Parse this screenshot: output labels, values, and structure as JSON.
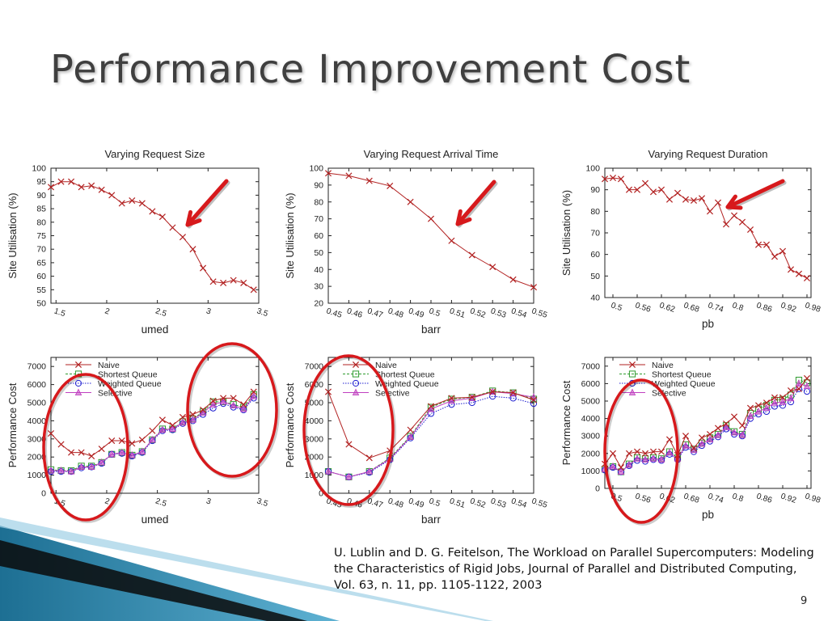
{
  "slide": {
    "title": "Performance Improvement Cost",
    "citation": "U. Lublin and D. G. Feitelson, The Workload on Parallel Supercomputers: Modeling the Characteristics of Rigid Jobs, Journal of Parallel and Distributed Computing, Vol. 63, n. 11, pp. 1105-1122, 2003",
    "page_number": "9"
  },
  "colors": {
    "naive": "#b22222",
    "shortest_queue": "#2e9b2e",
    "weighted_queue": "#1f1fd0",
    "selective": "#c040c0",
    "annotation_red": "#d7191c"
  },
  "chart_data": [
    {
      "type": "line",
      "title": "Varying Request Size",
      "xlabel": "umed",
      "ylabel": "Site Utilisation (%)",
      "xlim": [
        1.45,
        3.5
      ],
      "ylim": [
        50,
        100
      ],
      "xticks": [
        1.5,
        2,
        2.5,
        3,
        3.5
      ],
      "xtick_labels": [
        "1.5",
        "2",
        "2.5",
        "3",
        "3.5"
      ],
      "yticks": [
        50,
        55,
        60,
        65,
        70,
        75,
        80,
        85,
        90,
        95,
        100
      ],
      "grid": false,
      "annotation": "red arrow pointing at curve near umed 2.75",
      "series": [
        {
          "x": [
            1.45,
            1.55,
            1.65,
            1.75,
            1.85,
            1.95,
            2.05,
            2.15,
            2.25,
            2.35,
            2.45,
            2.55,
            2.65,
            2.75,
            2.85,
            2.95,
            3.05,
            3.15,
            3.25,
            3.35,
            3.45
          ],
          "y": [
            93,
            95,
            95,
            93,
            93.5,
            92,
            90,
            87,
            88,
            87,
            84,
            82,
            78,
            74.5,
            70,
            63,
            58,
            57.5,
            58.5,
            57.5,
            55
          ]
        }
      ]
    },
    {
      "type": "line",
      "title": "Varying Request Arrival Time",
      "xlabel": "barr",
      "ylabel": "Site Utilisation (%)",
      "xlim": [
        0.45,
        0.55
      ],
      "ylim": [
        20,
        100
      ],
      "xticks": [
        0.45,
        0.46,
        0.47,
        0.48,
        0.49,
        0.5,
        0.51,
        0.52,
        0.53,
        0.54,
        0.55
      ],
      "xtick_labels": [
        "0.45",
        "0.46",
        "0.47",
        "0.48",
        "0.49",
        "0.5",
        "0.51",
        "0.52",
        "0.53",
        "0.54",
        "0.55"
      ],
      "yticks": [
        20,
        30,
        40,
        50,
        60,
        70,
        80,
        90,
        100
      ],
      "grid": false,
      "annotation": "red arrow pointing at curve near barr 0.5",
      "series": [
        {
          "x": [
            0.45,
            0.46,
            0.47,
            0.48,
            0.49,
            0.5,
            0.51,
            0.52,
            0.53,
            0.54,
            0.55
          ],
          "y": [
            97,
            95.5,
            92.5,
            89.5,
            80,
            70,
            57,
            48.5,
            41.5,
            34,
            29.5
          ]
        }
      ]
    },
    {
      "type": "line",
      "title": "Varying Request Duration",
      "xlabel": "pb",
      "ylabel": "Site Utilisation (%)",
      "xlim": [
        0.48,
        0.99
      ],
      "ylim": [
        40,
        100
      ],
      "xticks": [
        0.5,
        0.56,
        0.62,
        0.68,
        0.74,
        0.8,
        0.86,
        0.92,
        0.98
      ],
      "xtick_labels": [
        "0.5",
        "0.56",
        "0.62",
        "0.68",
        "0.74",
        "0.8",
        "0.86",
        "0.92",
        "0.98"
      ],
      "yticks": [
        40,
        50,
        60,
        70,
        80,
        90,
        100
      ],
      "grid": false,
      "annotation": "red arrow pointing at curve near pb 0.79",
      "series": [
        {
          "x": [
            0.48,
            0.5,
            0.52,
            0.54,
            0.56,
            0.58,
            0.6,
            0.62,
            0.64,
            0.66,
            0.68,
            0.7,
            0.72,
            0.74,
            0.76,
            0.78,
            0.8,
            0.82,
            0.84,
            0.86,
            0.88,
            0.9,
            0.92,
            0.94,
            0.96,
            0.98
          ],
          "y": [
            95,
            95.5,
            95,
            90,
            90,
            93,
            89,
            90,
            85.5,
            88.5,
            85.5,
            85,
            86,
            80,
            84,
            74,
            78,
            75,
            71.5,
            64.5,
            64.5,
            59,
            61.5,
            53,
            51,
            49
          ]
        }
      ]
    },
    {
      "type": "line",
      "title": "",
      "xlabel": "umed",
      "ylabel": "Performance Cost",
      "xlim": [
        1.45,
        3.5
      ],
      "ylim": [
        0,
        7500
      ],
      "xticks": [
        1.5,
        2,
        2.5,
        3,
        3.5
      ],
      "xtick_labels": [
        "1.5",
        "2",
        "2.5",
        "3",
        "3.5"
      ],
      "yticks": [
        0,
        1000,
        2000,
        3000,
        4000,
        5000,
        6000,
        7000
      ],
      "grid": false,
      "legend": "top-left",
      "annotation": "two red ellipses around umed 1.45-1.9 and umed 2.8-3.45",
      "x": [
        1.45,
        1.55,
        1.65,
        1.75,
        1.85,
        1.95,
        2.05,
        2.15,
        2.25,
        2.35,
        2.45,
        2.55,
        2.65,
        2.75,
        2.85,
        2.95,
        3.05,
        3.15,
        3.25,
        3.35,
        3.45
      ],
      "series": [
        {
          "name": "Naive",
          "y": [
            3300,
            2700,
            2250,
            2250,
            2050,
            2450,
            2900,
            2900,
            2750,
            2950,
            3450,
            4050,
            3750,
            4200,
            4350,
            4600,
            5100,
            5250,
            5250,
            4900,
            5600
          ]
        },
        {
          "name": "Shortest Queue",
          "y": [
            1300,
            1250,
            1250,
            1500,
            1500,
            1700,
            2150,
            2250,
            2100,
            2300,
            2950,
            3550,
            3550,
            3950,
            4100,
            4500,
            5050,
            5050,
            4900,
            4750,
            5450
          ]
        },
        {
          "name": "Weighted Queue",
          "y": [
            1200,
            1200,
            1200,
            1400,
            1450,
            1650,
            2150,
            2200,
            2050,
            2250,
            2900,
            3450,
            3500,
            3850,
            4000,
            4350,
            4700,
            4950,
            4750,
            4600,
            5250
          ]
        },
        {
          "name": "Selective",
          "y": [
            1250,
            1250,
            1200,
            1450,
            1450,
            1700,
            2150,
            2250,
            2100,
            2300,
            2950,
            3500,
            3550,
            3900,
            4050,
            4450,
            4900,
            5050,
            4850,
            4650,
            5350
          ]
        }
      ]
    },
    {
      "type": "line",
      "title": "",
      "xlabel": "barr",
      "ylabel": "Performance Cost",
      "xlim": [
        0.45,
        0.55
      ],
      "ylim": [
        0,
        7500
      ],
      "xticks": [
        0.45,
        0.46,
        0.47,
        0.48,
        0.49,
        0.5,
        0.51,
        0.52,
        0.53,
        0.54,
        0.55
      ],
      "xtick_labels": [
        "0.45",
        "0.46",
        "0.47",
        "0.48",
        "0.49",
        "0.5",
        "0.51",
        "0.52",
        "0.53",
        "0.54",
        "0.55"
      ],
      "yticks": [
        0,
        1000,
        2000,
        3000,
        4000,
        5000,
        6000,
        7000
      ],
      "grid": false,
      "legend": "top-left",
      "annotation": "red ellipse around barr 0.45-0.475",
      "x": [
        0.45,
        0.46,
        0.47,
        0.48,
        0.49,
        0.5,
        0.51,
        0.52,
        0.53,
        0.54,
        0.55
      ],
      "series": [
        {
          "name": "Naive",
          "y": [
            5600,
            2700,
            1950,
            2350,
            3500,
            4800,
            5250,
            5300,
            5600,
            5550,
            5150
          ]
        },
        {
          "name": "Shortest Queue",
          "y": [
            1200,
            900,
            1200,
            1950,
            3150,
            4750,
            5200,
            5300,
            5650,
            5550,
            5200
          ]
        },
        {
          "name": "Weighted Queue",
          "y": [
            1200,
            900,
            1150,
            1850,
            3050,
            4400,
            4900,
            5000,
            5350,
            5250,
            4950
          ]
        },
        {
          "name": "Selective",
          "y": [
            1200,
            900,
            1200,
            1900,
            3100,
            4650,
            5100,
            5250,
            5600,
            5500,
            5300
          ]
        }
      ]
    },
    {
      "type": "line",
      "title": "",
      "xlabel": "pb",
      "ylabel": "Performance Cost",
      "xlim": [
        0.48,
        0.99
      ],
      "ylim": [
        0,
        7500
      ],
      "xticks": [
        0.5,
        0.56,
        0.62,
        0.68,
        0.74,
        0.8,
        0.86,
        0.92,
        0.98
      ],
      "xtick_labels": [
        "0.5",
        "0.56",
        "0.62",
        "0.68",
        "0.74",
        "0.8",
        "0.86",
        "0.92",
        "0.98"
      ],
      "yticks": [
        0,
        1000,
        2000,
        3000,
        4000,
        5000,
        6000,
        7000
      ],
      "grid": false,
      "legend": "top-left",
      "annotation": "red ellipse around pb 0.48-0.6",
      "x": [
        0.48,
        0.5,
        0.52,
        0.54,
        0.56,
        0.58,
        0.6,
        0.62,
        0.64,
        0.66,
        0.68,
        0.7,
        0.72,
        0.74,
        0.76,
        0.78,
        0.8,
        0.82,
        0.84,
        0.86,
        0.88,
        0.9,
        0.92,
        0.94,
        0.96,
        0.98
      ],
      "series": [
        {
          "name": "Naive",
          "y": [
            1400,
            2000,
            1200,
            2000,
            2100,
            2000,
            2100,
            2100,
            2800,
            1900,
            3000,
            2300,
            2900,
            3100,
            3450,
            3700,
            4100,
            3600,
            4600,
            4750,
            4900,
            5200,
            5200,
            5600,
            5700,
            6300
          ]
        },
        {
          "name": "Shortest Queue",
          "y": [
            1100,
            1250,
            950,
            1400,
            1750,
            1700,
            1750,
            1700,
            2100,
            1750,
            2500,
            2250,
            2600,
            2900,
            3100,
            3600,
            3250,
            3100,
            4300,
            4550,
            4750,
            5050,
            5100,
            5350,
            6200,
            6050
          ]
        },
        {
          "name": "Weighted Queue",
          "y": [
            1050,
            1200,
            950,
            1300,
            1600,
            1550,
            1650,
            1600,
            1950,
            1650,
            2350,
            2100,
            2450,
            2700,
            2950,
            3400,
            3100,
            3000,
            4000,
            4250,
            4400,
            4700,
            4750,
            4950,
            5700,
            5550
          ]
        },
        {
          "name": "Selective",
          "y": [
            1100,
            1250,
            950,
            1350,
            1700,
            1650,
            1700,
            1650,
            2050,
            1700,
            2450,
            2200,
            2550,
            2800,
            3050,
            3500,
            3200,
            3050,
            4150,
            4400,
            4600,
            4900,
            4950,
            5150,
            6000,
            5850
          ]
        }
      ]
    }
  ]
}
